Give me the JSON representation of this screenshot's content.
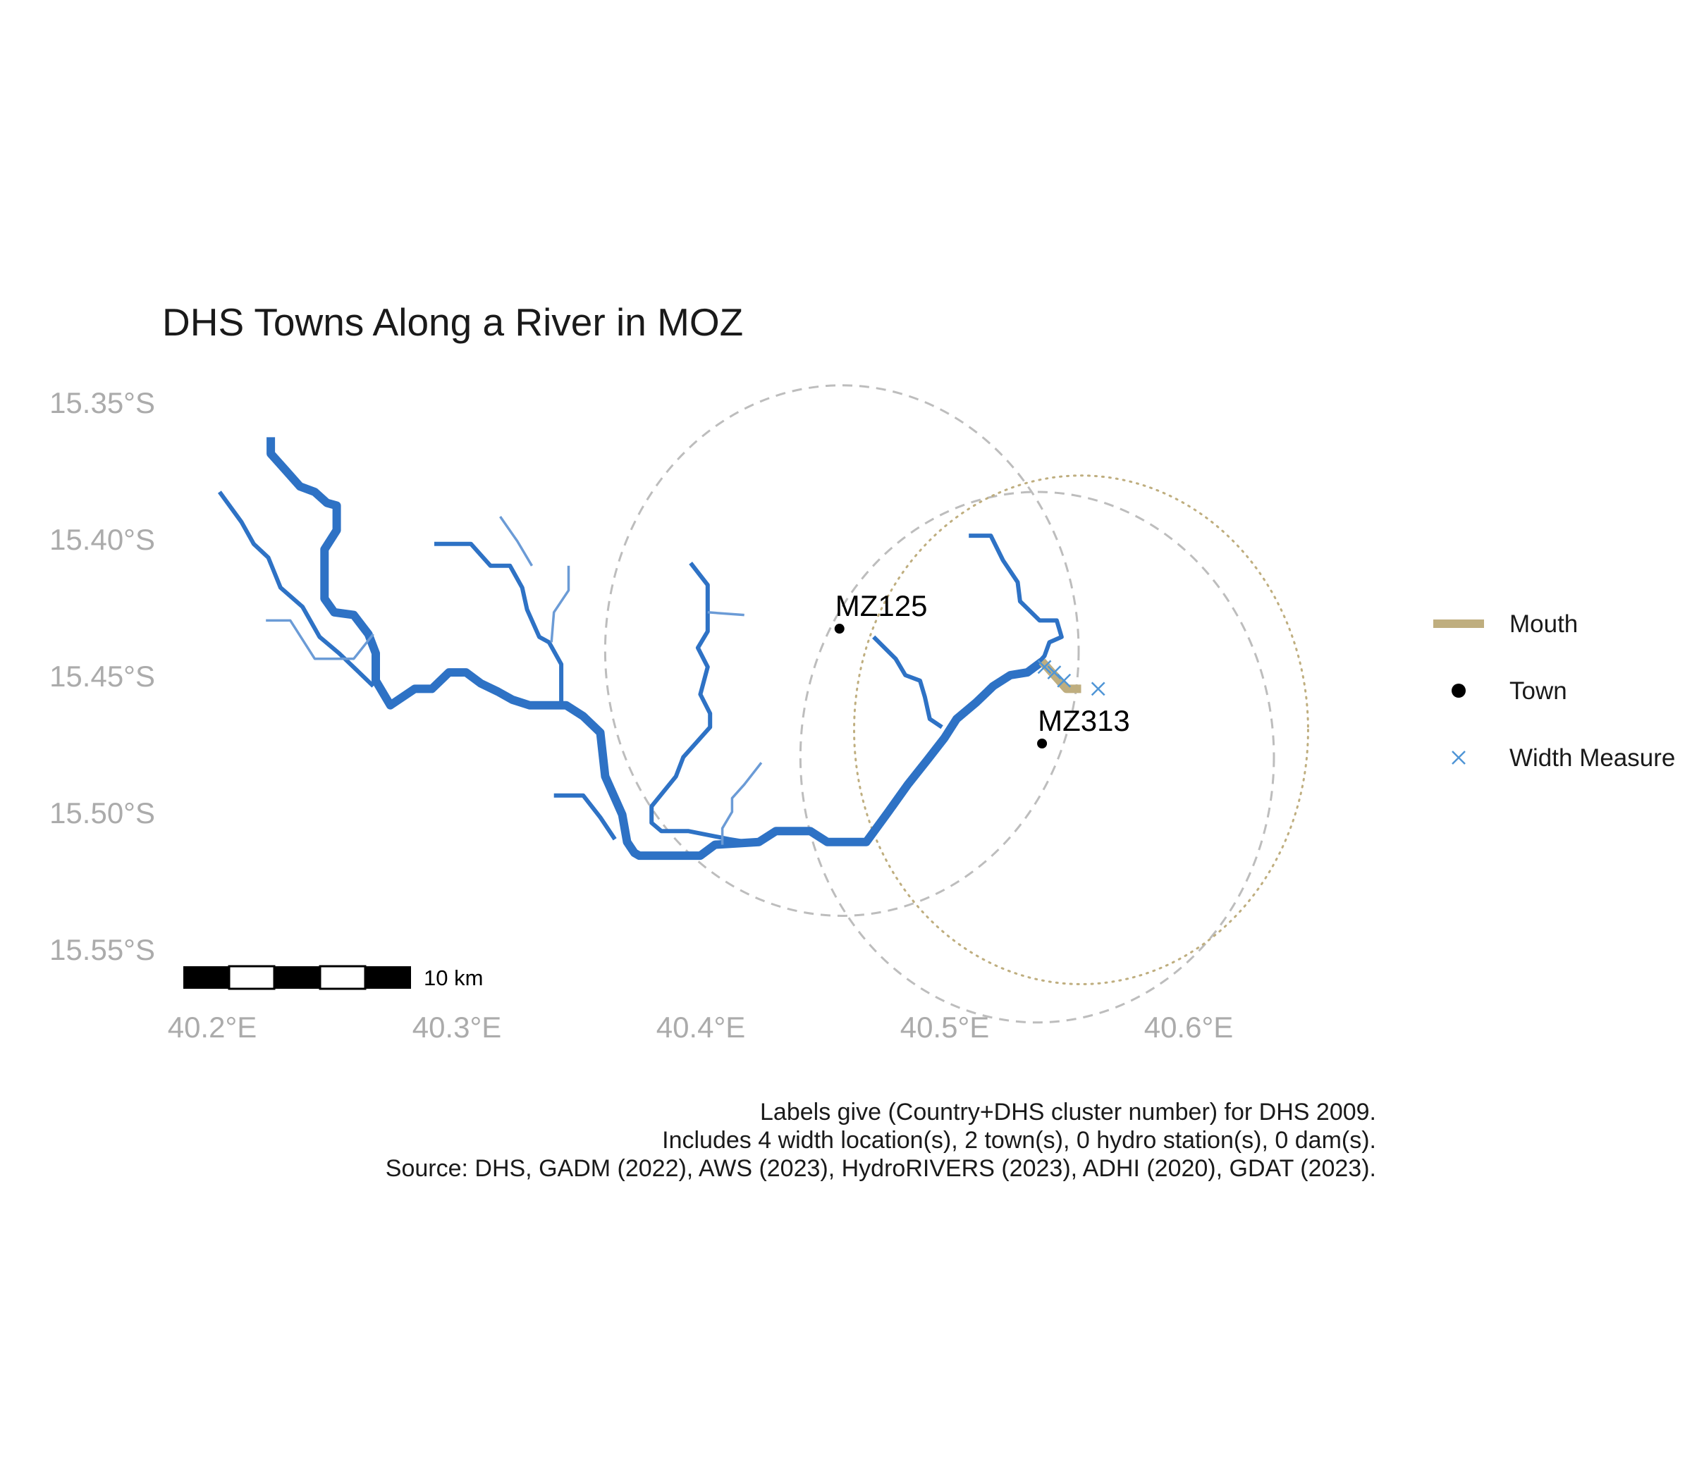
{
  "title": "DHS Towns Along a River in MOZ",
  "axes": {
    "y_ticks": [
      "15.35°S",
      "15.40°S",
      "15.45°S",
      "15.50°S",
      "15.55°S"
    ],
    "x_ticks": [
      "40.2°E",
      "40.3°E",
      "40.4°E",
      "40.5°E",
      "40.6°E"
    ]
  },
  "towns": [
    {
      "label": "MZ125",
      "lon": 40.457,
      "lat": -15.433
    },
    {
      "label": "MZ313",
      "lon": 40.54,
      "lat": -15.475
    }
  ],
  "width_measures": [
    {
      "lon": 40.541,
      "lat": -15.447
    },
    {
      "lon": 40.545,
      "lat": -15.449
    },
    {
      "lon": 40.549,
      "lat": -15.452
    },
    {
      "lon": 40.563,
      "lat": -15.455
    }
  ],
  "legend": {
    "items": [
      {
        "label": "Mouth",
        "color": "#bfae7f"
      },
      {
        "label": "Town",
        "color": "#000000"
      },
      {
        "label": "Width Measure",
        "color": "#4f95d6"
      }
    ]
  },
  "scale_bar": {
    "label": "10 km"
  },
  "caption": [
    "Labels give (Country+DHS cluster number) for DHS 2009.",
    "Includes 4 width location(s), 2 town(s), 0 hydro station(s), 0 dam(s).",
    "Source: DHS, GADM (2022), AWS (2023), HydroRIVERS (2023), ADHI (2020), GDAT (2023)."
  ],
  "colors": {
    "river": "#2e72c5",
    "river_light": "#6b9bd6",
    "mouth": "#bfae7f",
    "buffer": "#bdbdbd",
    "mouth_buffer": "#bfae7f",
    "width_measure": "#4f95d6"
  },
  "rivers": [
    {
      "tier": 3,
      "coords": [
        [
          40.224,
          -15.363
        ],
        [
          40.224,
          -15.369
        ],
        [
          40.23,
          -15.375
        ],
        [
          40.236,
          -15.381
        ],
        [
          40.242,
          -15.383
        ],
        [
          40.247,
          -15.387
        ],
        [
          40.251,
          -15.388
        ],
        [
          40.251,
          -15.397
        ],
        [
          40.246,
          -15.404
        ],
        [
          40.246,
          -15.422
        ],
        [
          40.25,
          -15.427
        ],
        [
          40.258,
          -15.428
        ],
        [
          40.264,
          -15.435
        ],
        [
          40.267,
          -15.442
        ],
        [
          40.267,
          -15.452
        ],
        [
          40.273,
          -15.461
        ],
        [
          40.283,
          -15.455
        ],
        [
          40.29,
          -15.455
        ],
        [
          40.297,
          -15.449
        ],
        [
          40.304,
          -15.449
        ],
        [
          40.31,
          -15.453
        ],
        [
          40.317,
          -15.456
        ],
        [
          40.323,
          -15.459
        ],
        [
          40.33,
          -15.461
        ],
        [
          40.345,
          -15.461
        ],
        [
          40.352,
          -15.465
        ],
        [
          40.359,
          -15.471
        ],
        [
          40.361,
          -15.487
        ],
        [
          40.368,
          -15.501
        ],
        [
          40.37,
          -15.511
        ],
        [
          40.373,
          -15.515
        ],
        [
          40.375,
          -15.516
        ],
        [
          40.4,
          -15.516
        ],
        [
          40.406,
          -15.512
        ],
        [
          40.424,
          -15.511
        ],
        [
          40.431,
          -15.507
        ],
        [
          40.445,
          -15.507
        ],
        [
          40.452,
          -15.511
        ],
        [
          40.468,
          -15.511
        ],
        [
          40.477,
          -15.5
        ],
        [
          40.485,
          -15.49
        ],
        [
          40.493,
          -15.481
        ],
        [
          40.5,
          -15.473
        ],
        [
          40.505,
          -15.466
        ],
        [
          40.513,
          -15.46
        ],
        [
          40.52,
          -15.454
        ],
        [
          40.527,
          -15.45
        ],
        [
          40.534,
          -15.449
        ],
        [
          40.54,
          -15.445
        ]
      ]
    },
    {
      "tier": 2,
      "coords": [
        [
          40.203,
          -15.383
        ],
        [
          40.212,
          -15.394
        ],
        [
          40.217,
          -15.402
        ],
        [
          40.223,
          -15.407
        ],
        [
          40.228,
          -15.418
        ],
        [
          40.237,
          -15.425
        ],
        [
          40.244,
          -15.436
        ],
        [
          40.252,
          -15.442
        ],
        [
          40.259,
          -15.448
        ],
        [
          40.266,
          -15.454
        ]
      ]
    },
    {
      "tier": 1,
      "coords": [
        [
          40.222,
          -15.43
        ],
        [
          40.232,
          -15.43
        ],
        [
          40.242,
          -15.444
        ],
        [
          40.258,
          -15.444
        ],
        [
          40.266,
          -15.435
        ]
      ]
    },
    {
      "tier": 2,
      "coords": [
        [
          40.291,
          -15.402
        ],
        [
          40.306,
          -15.402
        ],
        [
          40.314,
          -15.41
        ],
        [
          40.322,
          -15.41
        ],
        [
          40.327,
          -15.418
        ],
        [
          40.329,
          -15.426
        ],
        [
          40.334,
          -15.436
        ],
        [
          40.338,
          -15.438
        ],
        [
          40.343,
          -15.446
        ],
        [
          40.343,
          -15.461
        ]
      ]
    },
    {
      "tier": 1,
      "coords": [
        [
          40.318,
          -15.392
        ],
        [
          40.325,
          -15.401
        ],
        [
          40.331,
          -15.41
        ]
      ]
    },
    {
      "tier": 1,
      "coords": [
        [
          40.346,
          -15.41
        ],
        [
          40.346,
          -15.419
        ],
        [
          40.34,
          -15.427
        ],
        [
          40.339,
          -15.438
        ]
      ]
    },
    {
      "tier": 2,
      "coords": [
        [
          40.34,
          -15.494
        ],
        [
          40.352,
          -15.494
        ],
        [
          40.359,
          -15.502
        ],
        [
          40.365,
          -15.51
        ]
      ]
    },
    {
      "tier": 2,
      "coords": [
        [
          40.396,
          -15.409
        ],
        [
          40.403,
          -15.417
        ],
        [
          40.403,
          -15.434
        ],
        [
          40.399,
          -15.44
        ],
        [
          40.403,
          -15.447
        ],
        [
          40.4,
          -15.457
        ],
        [
          40.404,
          -15.464
        ],
        [
          40.404,
          -15.469
        ],
        [
          40.393,
          -15.48
        ],
        [
          40.39,
          -15.487
        ],
        [
          40.38,
          -15.498
        ],
        [
          40.38,
          -15.504
        ],
        [
          40.384,
          -15.507
        ],
        [
          40.395,
          -15.507
        ],
        [
          40.412,
          -15.51
        ],
        [
          40.419,
          -15.511
        ]
      ]
    },
    {
      "tier": 1,
      "coords": [
        [
          40.403,
          -15.427
        ],
        [
          40.418,
          -15.428
        ]
      ]
    },
    {
      "tier": 1,
      "coords": [
        [
          40.425,
          -15.482
        ],
        [
          40.418,
          -15.49
        ],
        [
          40.413,
          -15.495
        ],
        [
          40.413,
          -15.5
        ],
        [
          40.409,
          -15.506
        ],
        [
          40.409,
          -15.512
        ]
      ]
    },
    {
      "tier": 2,
      "coords": [
        [
          40.471,
          -15.436
        ],
        [
          40.48,
          -15.444
        ],
        [
          40.484,
          -15.45
        ],
        [
          40.49,
          -15.452
        ],
        [
          40.492,
          -15.458
        ],
        [
          40.494,
          -15.466
        ],
        [
          40.499,
          -15.469
        ]
      ]
    },
    {
      "tier": 2,
      "coords": [
        [
          40.51,
          -15.399
        ],
        [
          40.519,
          -15.399
        ],
        [
          40.524,
          -15.408
        ],
        [
          40.53,
          -15.416
        ],
        [
          40.531,
          -15.423
        ],
        [
          40.539,
          -15.43
        ],
        [
          40.546,
          -15.43
        ],
        [
          40.548,
          -15.436
        ],
        [
          40.543,
          -15.438
        ],
        [
          40.541,
          -15.443
        ],
        [
          40.537,
          -15.447
        ]
      ]
    }
  ],
  "mouth_coords": [
    [
      40.54,
      -15.445
    ],
    [
      40.546,
      -15.451
    ],
    [
      40.55,
      -15.455
    ],
    [
      40.556,
      -15.455
    ]
  ],
  "town_buffers": [
    {
      "lon": 40.458,
      "lat": -15.441,
      "radius_deg": 0.097
    },
    {
      "lon": 40.538,
      "lat": -15.48,
      "radius_deg": 0.097
    }
  ],
  "mouth_buffer": {
    "lon": 40.556,
    "lat": -15.47,
    "radius_deg": 0.093
  }
}
